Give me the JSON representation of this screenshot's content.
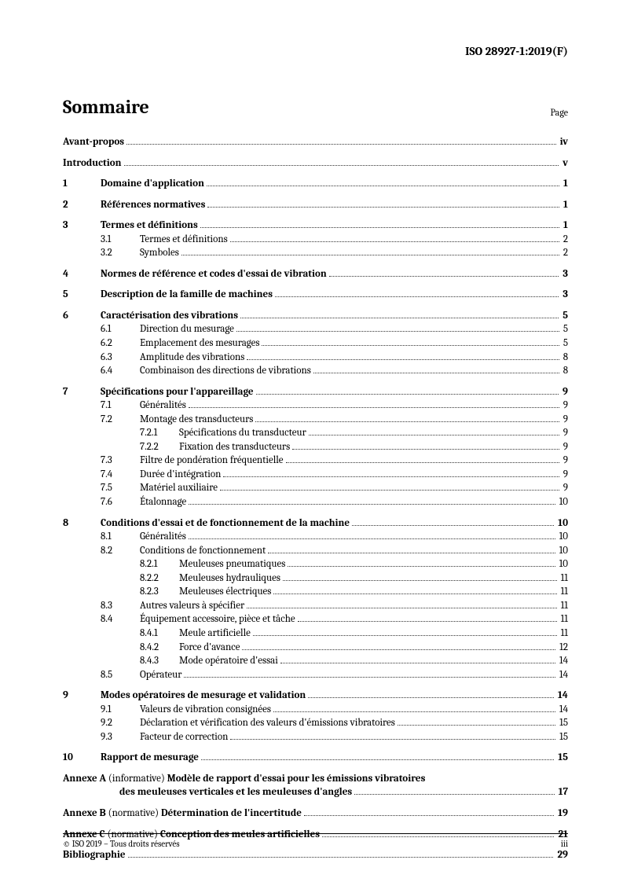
{
  "header": {
    "doc_id": "ISO 28927-1:2019(F)"
  },
  "title_block": {
    "title": "Sommaire",
    "page_label": "Page"
  },
  "front_matter": [
    {
      "label": "Avant-propos",
      "page": "iv"
    },
    {
      "label": "Introduction",
      "page": "v"
    }
  ],
  "chapters": [
    {
      "num": "1",
      "title": "Domaine d'application",
      "page": "1",
      "subs": []
    },
    {
      "num": "2",
      "title": "Références normatives",
      "page": "1",
      "subs": []
    },
    {
      "num": "3",
      "title": "Termes et définitions",
      "page": "1",
      "subs": [
        {
          "num": "3.1",
          "title": "Termes et définitions",
          "page": "2"
        },
        {
          "num": "3.2",
          "title": "Symboles",
          "page": "2"
        }
      ]
    },
    {
      "num": "4",
      "title": "Normes de référence et codes d'essai de vibration",
      "page": "3",
      "subs": []
    },
    {
      "num": "5",
      "title": "Description de la famille de machines",
      "page": "3",
      "subs": []
    },
    {
      "num": "6",
      "title": "Caractérisation des vibrations",
      "page": "5",
      "subs": [
        {
          "num": "6.1",
          "title": "Direction du mesurage",
          "page": "5"
        },
        {
          "num": "6.2",
          "title": "Emplacement des mesurages",
          "page": "5"
        },
        {
          "num": "6.3",
          "title": "Amplitude des vibrations",
          "page": "8"
        },
        {
          "num": "6.4",
          "title": "Combinaison des directions de vibrations",
          "page": "8"
        }
      ]
    },
    {
      "num": "7",
      "title": "Spécifications pour l'appareillage",
      "page": "9",
      "subs": [
        {
          "num": "7.1",
          "title": "Généralités",
          "page": "9"
        },
        {
          "num": "7.2",
          "title": "Montage des transducteurs",
          "page": "9",
          "subsubs": [
            {
              "num": "7.2.1",
              "title": "Spécifications du transducteur",
              "page": "9"
            },
            {
              "num": "7.2.2",
              "title": "Fixation des transducteurs",
              "page": "9"
            }
          ]
        },
        {
          "num": "7.3",
          "title": "Filtre de pondération fréquentielle",
          "page": "9"
        },
        {
          "num": "7.4",
          "title": "Durée d'intégration",
          "page": "9"
        },
        {
          "num": "7.5",
          "title": "Matériel auxiliaire",
          "page": "9"
        },
        {
          "num": "7.6",
          "title": "Étalonnage",
          "page": "10"
        }
      ]
    },
    {
      "num": "8",
      "title": "Conditions d'essai et de fonctionnement de la machine",
      "page": "10",
      "subs": [
        {
          "num": "8.1",
          "title": "Généralités",
          "page": "10"
        },
        {
          "num": "8.2",
          "title": "Conditions de fonctionnement",
          "page": "10",
          "subsubs": [
            {
              "num": "8.2.1",
              "title": "Meuleuses pneumatiques",
              "page": "10"
            },
            {
              "num": "8.2.2",
              "title": "Meuleuses hydrauliques",
              "page": "11"
            },
            {
              "num": "8.2.3",
              "title": "Meuleuses électriques",
              "page": "11"
            }
          ]
        },
        {
          "num": "8.3",
          "title": "Autres valeurs à spécifier",
          "page": "11"
        },
        {
          "num": "8.4",
          "title": "Équipement accessoire, pièce et tâche",
          "page": "11",
          "subsubs": [
            {
              "num": "8.4.1",
              "title": "Meule artificielle",
              "page": "11"
            },
            {
              "num": "8.4.2",
              "title": "Force d'avance",
              "page": "12"
            },
            {
              "num": "8.4.3",
              "title": "Mode opératoire d'essai",
              "page": "14"
            }
          ]
        },
        {
          "num": "8.5",
          "title": "Opérateur",
          "page": "14"
        }
      ]
    },
    {
      "num": "9",
      "title": "Modes opératoires de mesurage et validation",
      "page": "14",
      "subs": [
        {
          "num": "9.1",
          "title": "Valeurs de vibration consignées",
          "page": "14"
        },
        {
          "num": "9.2",
          "title": "Déclaration et vérification des valeurs d'émissions vibratoires",
          "page": "15"
        },
        {
          "num": "9.3",
          "title": "Facteur de correction",
          "page": "15"
        }
      ]
    },
    {
      "num": "10",
      "title": "Rapport de mesurage",
      "page": "15",
      "subs": []
    }
  ],
  "annexes": [
    {
      "tag": "Annexe A",
      "type": "(informative)",
      "title_line1": "Modèle de rapport d'essai pour les émissions vibratoires",
      "title_line2": "des meuleuses verticales et les meuleuses d'angles",
      "page": "17"
    },
    {
      "tag": "Annexe B",
      "type": "(normative)",
      "title": "Détermination de l'incertitude",
      "page": "19"
    },
    {
      "tag": "Annexe C",
      "type": "(normative)",
      "title": "Conception des meules artificielles",
      "page": "21"
    }
  ],
  "bibliography": {
    "label": "Bibliographie",
    "page": "29"
  },
  "footer": {
    "copyright": "© ISO 2019 – Tous droits réservés",
    "page_num": "iii"
  }
}
